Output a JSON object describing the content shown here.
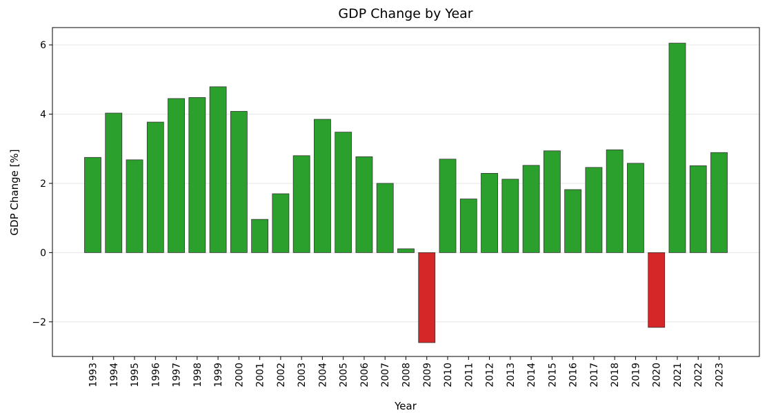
{
  "chart_data": {
    "type": "bar",
    "title": "GDP Change by Year",
    "xlabel": "Year",
    "ylabel": "GDP Change [%]",
    "ylim": [
      -3,
      6.5
    ],
    "yticks": [
      -2,
      0,
      2,
      4,
      6
    ],
    "ytick_labels": [
      "−2",
      "0",
      "2",
      "4",
      "6"
    ],
    "grid": "horizontal",
    "positive_color": "#2ca02c",
    "negative_color": "#d62728",
    "edge_color": "#333333",
    "categories": [
      "1993",
      "1994",
      "1995",
      "1996",
      "1997",
      "1998",
      "1999",
      "2000",
      "2001",
      "2002",
      "2003",
      "2004",
      "2005",
      "2006",
      "2007",
      "2008",
      "2009",
      "2010",
      "2011",
      "2012",
      "2013",
      "2014",
      "2015",
      "2016",
      "2017",
      "2018",
      "2019",
      "2020",
      "2021",
      "2022",
      "2023"
    ],
    "values": [
      2.75,
      4.03,
      2.68,
      3.77,
      4.45,
      4.48,
      4.79,
      4.08,
      0.96,
      1.7,
      2.8,
      3.85,
      3.48,
      2.77,
      2.0,
      0.11,
      -2.6,
      2.7,
      1.55,
      2.29,
      2.12,
      2.52,
      2.94,
      1.82,
      2.46,
      2.97,
      2.58,
      -2.16,
      6.05,
      2.51,
      2.89
    ]
  }
}
